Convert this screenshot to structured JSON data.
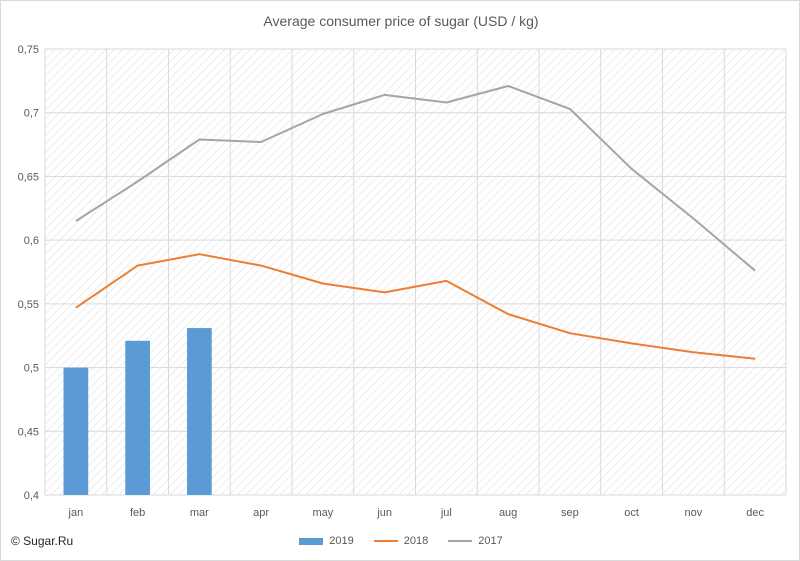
{
  "copyright": "© Sugar.Ru",
  "colors": {
    "2019": "#5b9bd5",
    "2018": "#ed7d31",
    "2017": "#a5a5a5",
    "grid": "#d9d9d9",
    "hatch": "#e6e6e6"
  },
  "chart_data": {
    "type": "bar+line",
    "title": "Average consumer price of sugar (USD / kg)",
    "xlabel": "",
    "ylabel": "",
    "categories": [
      "jan",
      "feb",
      "mar",
      "apr",
      "may",
      "jun",
      "jul",
      "aug",
      "sep",
      "oct",
      "nov",
      "dec"
    ],
    "ylim": [
      0.4,
      0.75
    ],
    "yticks": [
      0.4,
      0.45,
      0.5,
      0.55,
      0.6,
      0.65,
      0.7,
      0.75
    ],
    "ytick_labels": [
      "0,4",
      "0,45",
      "0,5",
      "0,55",
      "0,6",
      "0,65",
      "0,7",
      "0,75"
    ],
    "grid": true,
    "legend_position": "bottom",
    "series": [
      {
        "name": "2019",
        "kind": "bar",
        "values": [
          0.5,
          0.521,
          0.531,
          null,
          null,
          null,
          null,
          null,
          null,
          null,
          null,
          null
        ]
      },
      {
        "name": "2018",
        "kind": "line",
        "values": [
          0.547,
          0.58,
          0.589,
          0.58,
          0.566,
          0.559,
          0.568,
          0.542,
          0.527,
          0.519,
          0.512,
          0.507
        ]
      },
      {
        "name": "2017",
        "kind": "line",
        "values": [
          0.615,
          0.646,
          0.679,
          0.677,
          0.699,
          0.714,
          0.708,
          0.721,
          0.703,
          0.656,
          0.617,
          0.576
        ]
      }
    ]
  }
}
